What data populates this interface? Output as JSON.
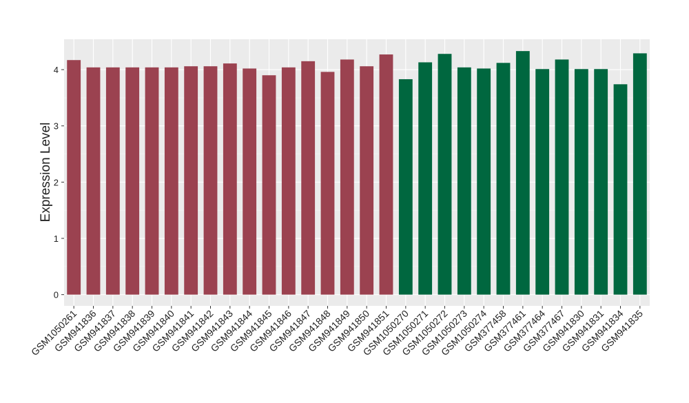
{
  "chart_data": {
    "type": "bar",
    "y_label": "Expression Level",
    "categories": [
      "GSM1050261",
      "GSM941836",
      "GSM941837",
      "GSM941838",
      "GSM941839",
      "GSM941840",
      "GSM941841",
      "GSM941842",
      "GSM941843",
      "GSM941844",
      "GSM941845",
      "GSM941846",
      "GSM941847",
      "GSM941848",
      "GSM941849",
      "GSM941850",
      "GSM941851",
      "GSM1050270",
      "GSM1050271",
      "GSM1050272",
      "GSM1050273",
      "GSM1050274",
      "GSM377458",
      "GSM377461",
      "GSM377464",
      "GSM377467",
      "GSM941830",
      "GSM941831",
      "GSM941834",
      "GSM941835"
    ],
    "values": [
      4.17,
      4.04,
      4.04,
      4.04,
      4.04,
      4.04,
      4.06,
      4.06,
      4.11,
      4.02,
      3.9,
      4.04,
      4.15,
      3.96,
      4.18,
      4.06,
      4.27,
      3.83,
      4.13,
      4.28,
      4.04,
      4.02,
      4.12,
      4.33,
      4.01,
      4.18,
      4.01,
      4.01,
      3.74,
      4.29
    ],
    "colors": [
      "#9b4250",
      "#9b4250",
      "#9b4250",
      "#9b4250",
      "#9b4250",
      "#9b4250",
      "#9b4250",
      "#9b4250",
      "#9b4250",
      "#9b4250",
      "#9b4250",
      "#9b4250",
      "#9b4250",
      "#9b4250",
      "#9b4250",
      "#9b4250",
      "#9b4250",
      "#00673f",
      "#00673f",
      "#00673f",
      "#00673f",
      "#00673f",
      "#00673f",
      "#00673f",
      "#00673f",
      "#00673f",
      "#00673f",
      "#00673f",
      "#00673f",
      "#00673f"
    ],
    "ylim": [
      -0.2,
      4.54
    ],
    "yticks": [
      0,
      1,
      2,
      3,
      4
    ],
    "grid": true
  }
}
